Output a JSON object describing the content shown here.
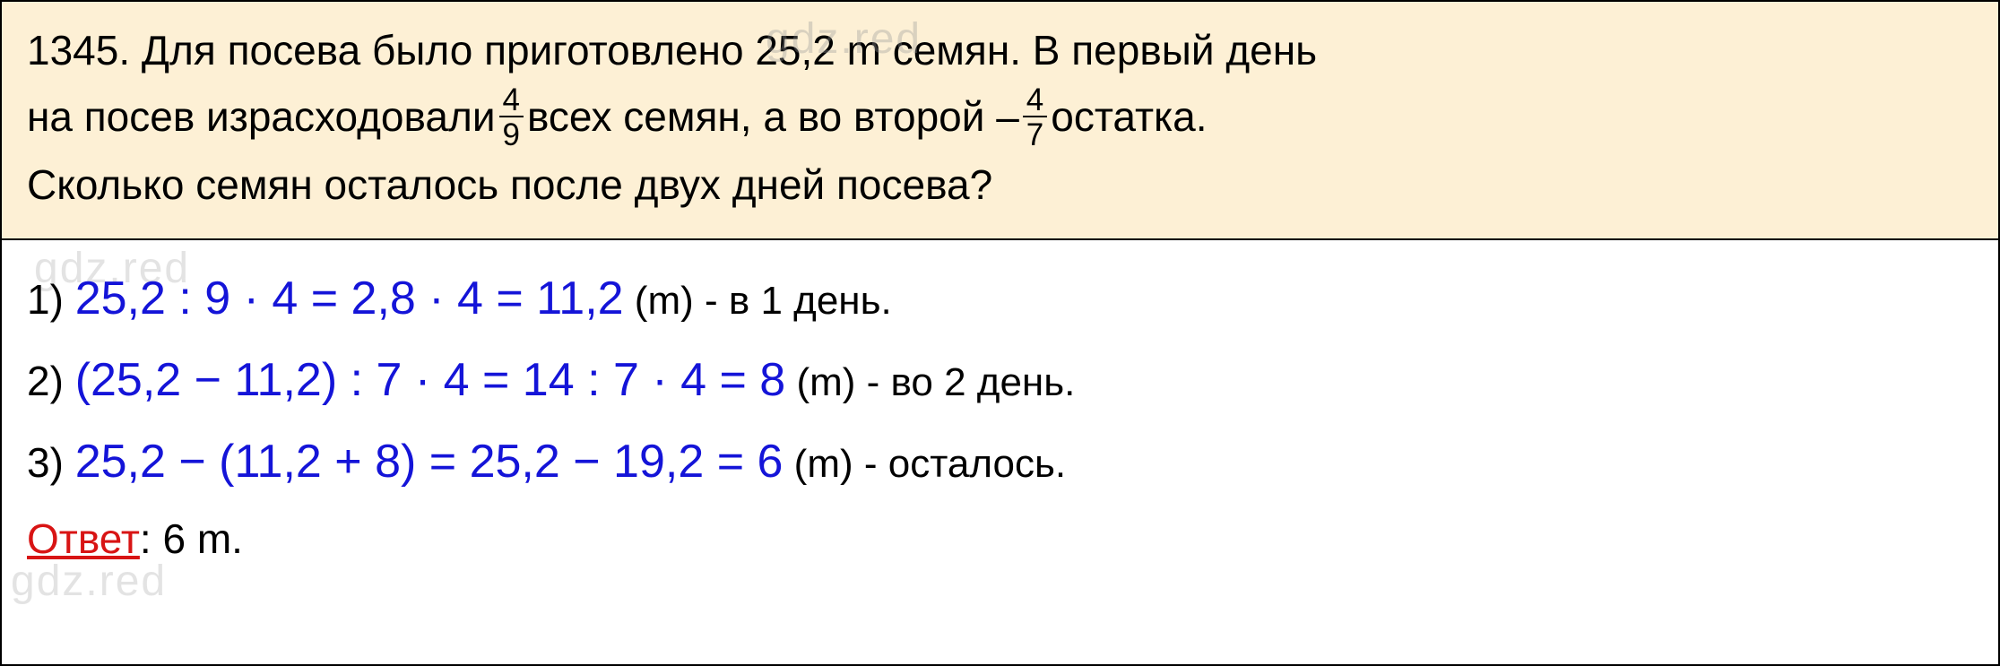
{
  "watermarks": {
    "w1": "gdz.red",
    "w2": "gdz.red",
    "w3": "gdz.red"
  },
  "problem": {
    "number": "1345.",
    "line1a": " Для посева было приготовлено 25,2 m семян. В первый день",
    "line2a": "на посев израсходовали",
    "frac1_num": "4",
    "frac1_den": "9",
    "line2b": "всех семян, а во второй –",
    "frac2_num": "4",
    "frac2_den": "7",
    "line2c": "остатка.",
    "line3": "Сколько семян осталось после двух дней посева?"
  },
  "solution": {
    "step1_num": "1) ",
    "step1_math": "25,2 : 9 · 4 = 2,8 · 4 = 11,2",
    "step1_unit": " (m) - в 1 день.",
    "step2_num": "2) ",
    "step2_math": "(25,2 − 11,2) : 7 · 4 = 14 : 7 · 4 = 8",
    "step2_unit": " (m) - во 2 день.",
    "step3_num": "3) ",
    "step3_math": "25,2 − (11,2 + 8) = 25,2 − 19,2 = 6",
    "step3_unit": " (m) - осталось.",
    "answer_label": "Ответ",
    "answer_value": ": 6 m."
  },
  "colors": {
    "problem_bg": "#fdf0d5",
    "solution_bg": "#ffffff",
    "border": "#000000",
    "text": "#000000",
    "math": "#1414d8",
    "answer": "#d81414",
    "watermark": "#bbbbbb"
  }
}
